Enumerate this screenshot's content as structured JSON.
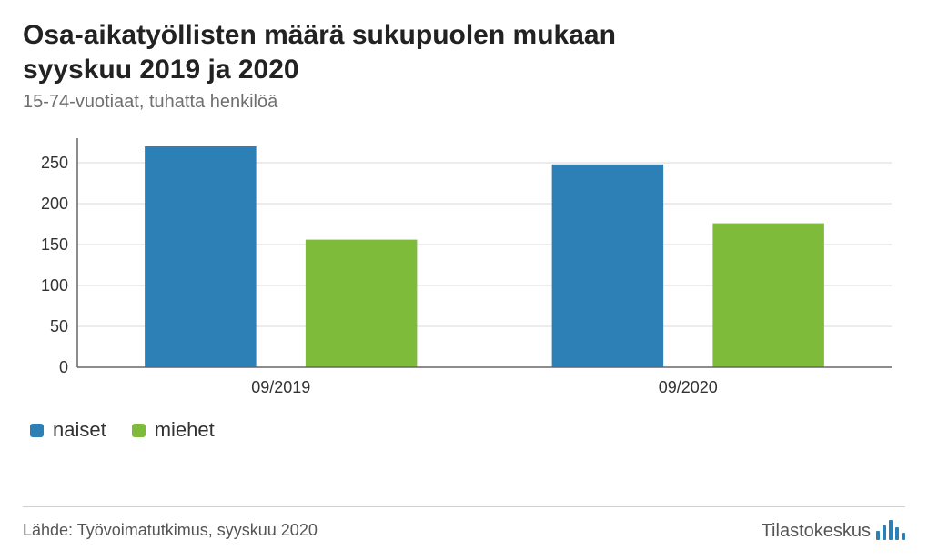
{
  "title": "Osa-aikatyöllisten määrä sukupuolen mukaan syyskuu 2019 ja 2020",
  "subtitle": "15-74-vuotiaat, tuhatta henkilöä",
  "source": "Lähde: Työvoimatutkimus, syyskuu 2020",
  "brand": "Tilastokeskus",
  "chart": {
    "type": "grouped-bar",
    "categories": [
      "09/2019",
      "09/2020"
    ],
    "series": [
      {
        "name": "naiset",
        "color": "#2c80b6",
        "values": [
          270,
          248
        ]
      },
      {
        "name": "miehet",
        "color": "#7fbb3b",
        "values": [
          156,
          176
        ]
      }
    ],
    "ylim": [
      0,
      280
    ],
    "yticks": [
      0,
      50,
      100,
      150,
      200,
      250
    ],
    "grid_color": "#d8d8d8",
    "axis_color": "#666666",
    "background_color": "#ffffff",
    "bar_width": 0.75,
    "tick_fontsize": 18,
    "title_fontsize": 30,
    "legend_fontsize": 22
  }
}
